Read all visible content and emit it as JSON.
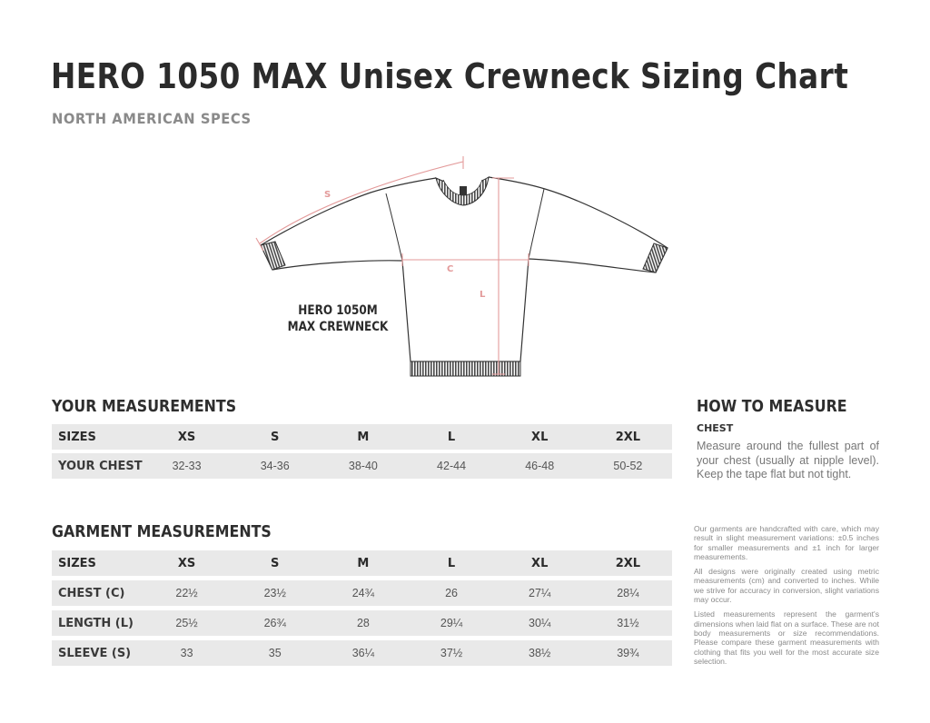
{
  "header": {
    "title": "HERO 1050 MAX Unisex Crewneck Sizing Chart",
    "subtitle": "NORTH AMERICAN SPECS"
  },
  "diagram": {
    "product_label_line1": "HERO 1050M",
    "product_label_line2": "MAX CREWNECK",
    "marker_sleeve": "S",
    "marker_chest": "C",
    "marker_length": "L",
    "accent_color": "#e39a9a"
  },
  "your_measurements": {
    "heading": "YOUR MEASUREMENTS",
    "header_row": [
      "SIZES",
      "XS",
      "S",
      "M",
      "L",
      "XL",
      "2XL"
    ],
    "rows": [
      {
        "label": "YOUR CHEST",
        "values": [
          "32-33",
          "34-36",
          "38-40",
          "42-44",
          "46-48",
          "50-52"
        ]
      }
    ]
  },
  "garment_measurements": {
    "heading": "GARMENT MEASUREMENTS",
    "header_row": [
      "SIZES",
      "XS",
      "S",
      "M",
      "L",
      "XL",
      "2XL"
    ],
    "rows": [
      {
        "label": "CHEST (C)",
        "values": [
          "22½",
          "23½",
          "24¾",
          "26",
          "27¼",
          "28¼"
        ]
      },
      {
        "label": "LENGTH (L)",
        "values": [
          "25½",
          "26¾",
          "28",
          "29¼",
          "30¼",
          "31½"
        ]
      },
      {
        "label": "SLEEVE (S)",
        "values": [
          "33",
          "35",
          "36¼",
          "37½",
          "38½",
          "39¾"
        ]
      }
    ]
  },
  "how_to_measure": {
    "heading": "HOW TO MEASURE",
    "subheading": "CHEST",
    "body": "Measure around the fullest part of your chest (usually at nipple level). Keep the tape flat but not tight."
  },
  "notes": [
    "Our garments are handcrafted with care, which may result in slight measurement variations: ±0.5 inches for smaller measurements and ±1 inch for larger measurements.",
    "All designs were originally created using metric measurements (cm) and converted to inches. While we strive for accuracy in conversion, slight variations may occur.",
    "Listed measurements represent the garment's dimensions when laid flat on a surface. These are not body measurements or size recommendations. Please compare these garment measurements with clothing that fits you well for the most accurate size selection."
  ]
}
